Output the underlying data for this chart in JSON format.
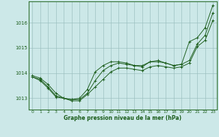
{
  "title": "Graphe pression niveau de la mer (hPa)",
  "bg_color": "#cce8e8",
  "grid_color": "#9bbfbf",
  "line_color": "#1a5c1a",
  "marker_color": "#1a5c1a",
  "xlim": [
    -0.5,
    23.5
  ],
  "ylim": [
    1012.55,
    1016.85
  ],
  "yticks": [
    1013,
    1014,
    1015,
    1016
  ],
  "xticks": [
    0,
    1,
    2,
    3,
    4,
    5,
    6,
    7,
    8,
    9,
    10,
    11,
    12,
    13,
    14,
    15,
    16,
    17,
    18,
    19,
    20,
    21,
    22,
    23
  ],
  "series": [
    [
      1013.9,
      1013.8,
      1013.55,
      1013.2,
      1013.0,
      1012.9,
      1012.9,
      1013.15,
      1013.45,
      1013.75,
      1014.05,
      1014.2,
      1014.2,
      1014.15,
      1014.1,
      1014.25,
      1014.3,
      1014.25,
      1014.2,
      1014.25,
      1014.4,
      1015.05,
      1015.3,
      1016.1
    ],
    [
      1013.85,
      1013.75,
      1013.45,
      1013.1,
      1013.0,
      1012.95,
      1012.95,
      1013.2,
      1013.7,
      1014.1,
      1014.3,
      1014.4,
      1014.35,
      1014.3,
      1014.3,
      1014.45,
      1014.45,
      1014.4,
      1014.3,
      1014.35,
      1014.5,
      1015.15,
      1015.5,
      1016.4
    ],
    [
      1013.85,
      1013.7,
      1013.4,
      1013.05,
      1013.0,
      1012.95,
      1013.0,
      1013.35,
      1014.05,
      1014.3,
      1014.45,
      1014.45,
      1014.4,
      1014.3,
      1014.25,
      1014.45,
      1014.5,
      1014.4,
      1014.3,
      1014.35,
      1015.25,
      1015.4,
      1015.8,
      1016.7
    ]
  ]
}
